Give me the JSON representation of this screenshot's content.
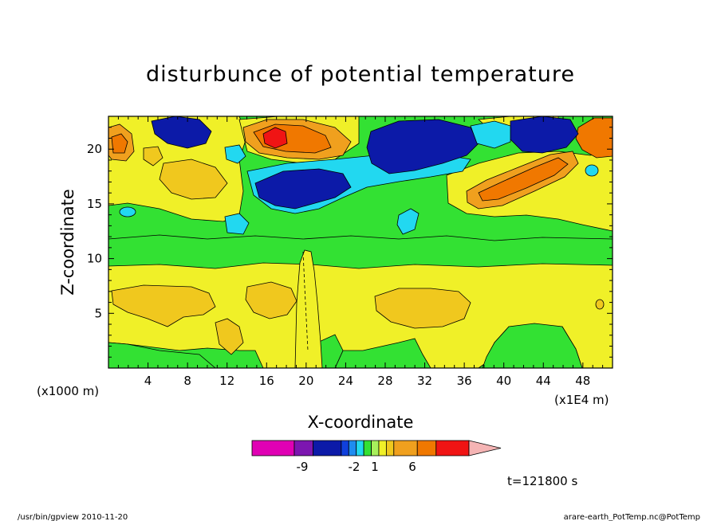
{
  "chart_data": {
    "type": "heatmap",
    "title": "disturbunce of potential temperature",
    "xlabel": "X-coordinate",
    "ylabel": "Z-coordinate",
    "x_unit_left": "(x1000 m)",
    "x_unit_right": "(x1E4 m)",
    "x_ticks": [
      "4",
      "8",
      "12",
      "16",
      "20",
      "24",
      "28",
      "32",
      "36",
      "40",
      "44",
      "48"
    ],
    "y_ticks": [
      "5",
      "10",
      "15",
      "20"
    ],
    "xlim": [
      0,
      51
    ],
    "ylim": [
      0,
      23
    ],
    "colorbar": {
      "tick_labels": [
        "-9",
        "-2",
        "1",
        "6"
      ],
      "colors": [
        "#e000b4",
        "#7c16b0",
        "#0c1aa8",
        "#1040dc",
        "#1e8cf0",
        "#22d8f0",
        "#33e133",
        "#a8f05c",
        "#f0f028",
        "#f0c81e",
        "#f0a01e",
        "#f07800",
        "#f01414",
        "#f57878",
        "#f5b4b4"
      ]
    },
    "time_label": "t=121800 s"
  },
  "footer": {
    "left": "/usr/bin/gpview   2010-11-20",
    "right": "arare-earth_PotTemp.nc@PotTemp"
  }
}
